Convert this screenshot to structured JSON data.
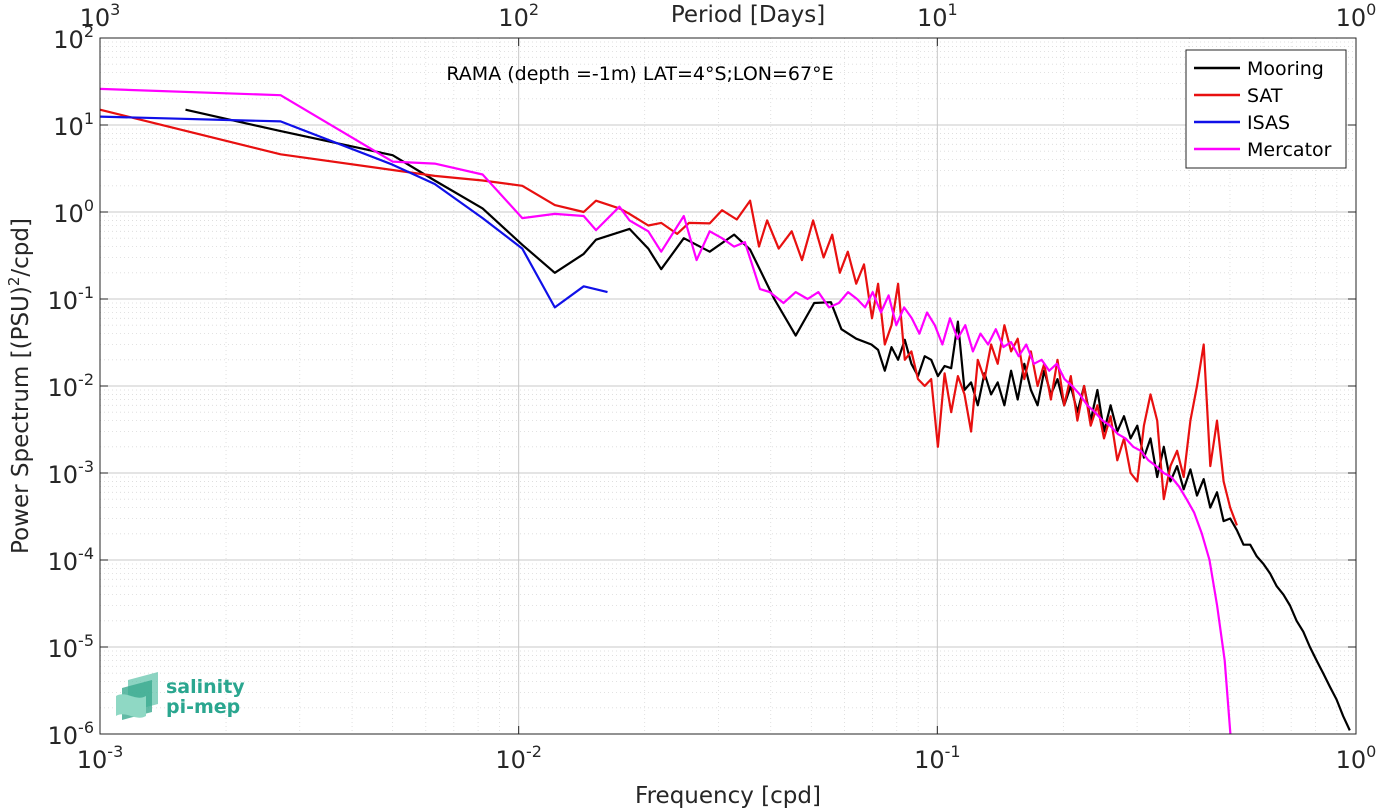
{
  "chart_data": {
    "type": "line",
    "title": "RAMA (depth =-1m) LAT=4°S;LON=67°E",
    "xlabel": "Frequency [cpd]",
    "ylabel": "Power Spectrum [(PSU)",
    "ylabel_sup": "2",
    "ylabel_tail": "/cpd]",
    "top_xlabel": "Period [Days]",
    "x_scale": "log",
    "y_scale": "log",
    "xlim": [
      0.001,
      1
    ],
    "ylim": [
      1e-06,
      100
    ],
    "grid": true,
    "legend_position": "top-right",
    "x_ticks": [
      {
        "value": 0.001,
        "base": "10",
        "exp": "-3"
      },
      {
        "value": 0.01,
        "base": "10",
        "exp": "-2"
      },
      {
        "value": 0.1,
        "base": "10",
        "exp": "-1"
      },
      {
        "value": 1,
        "base": "10",
        "exp": "0"
      }
    ],
    "top_ticks": [
      {
        "value": 0.001,
        "base": "10",
        "exp": "3"
      },
      {
        "value": 0.01,
        "base": "10",
        "exp": "2"
      },
      {
        "value": 0.1,
        "base": "10",
        "exp": "1"
      },
      {
        "value": 1,
        "base": "10",
        "exp": "0"
      }
    ],
    "y_ticks": [
      {
        "value": 100,
        "base": "10",
        "exp": "2"
      },
      {
        "value": 10,
        "base": "10",
        "exp": "1"
      },
      {
        "value": 1,
        "base": "10",
        "exp": "0"
      },
      {
        "value": 0.1,
        "base": "10",
        "exp": "-1"
      },
      {
        "value": 0.01,
        "base": "10",
        "exp": "-2"
      },
      {
        "value": 0.001,
        "base": "10",
        "exp": "-3"
      },
      {
        "value": 0.0001,
        "base": "10",
        "exp": "-4"
      },
      {
        "value": 1e-05,
        "base": "10",
        "exp": "-5"
      },
      {
        "value": 1e-06,
        "base": "10",
        "exp": "-6"
      }
    ],
    "series": [
      {
        "name": "Mooring",
        "color": "#000000",
        "x": [
          0.0016,
          0.0027,
          0.005,
          0.0063,
          0.0082,
          0.0102,
          0.0122,
          0.0143,
          0.0153,
          0.0184,
          0.0204,
          0.0219,
          0.0248,
          0.0286,
          0.0327,
          0.0357,
          0.0408,
          0.0459,
          0.0508,
          0.0557,
          0.059,
          0.064,
          0.0696,
          0.0722,
          0.0749,
          0.0777,
          0.0806,
          0.0836,
          0.0867,
          0.0899,
          0.0933,
          0.0967,
          0.1003,
          0.1041,
          0.1079,
          0.112,
          0.1161,
          0.1204,
          0.1249,
          0.1296,
          0.1344,
          0.1394,
          0.1446,
          0.15,
          0.1556,
          0.1613,
          0.1673,
          0.1736,
          0.18,
          0.1867,
          0.1937,
          0.2009,
          0.2084,
          0.2161,
          0.2242,
          0.2325,
          0.2412,
          0.2501,
          0.2594,
          0.2691,
          0.2791,
          0.2895,
          0.3003,
          0.3114,
          0.323,
          0.335,
          0.3475,
          0.3604,
          0.3738,
          0.3877,
          0.4022,
          0.4171,
          0.4327,
          0.4488,
          0.4655,
          0.4828,
          0.5007,
          0.5194,
          0.5387,
          0.5587,
          0.5795,
          0.6011,
          0.6234,
          0.6466,
          0.6707,
          0.6956,
          0.7215,
          0.7484,
          0.7762,
          0.8051,
          0.8351,
          0.8662,
          0.8984,
          0.9319,
          0.9666
        ],
        "y": [
          15,
          8.5,
          4.5,
          2.3,
          1.1,
          0.42,
          0.2,
          0.33,
          0.48,
          0.64,
          0.38,
          0.22,
          0.5,
          0.35,
          0.55,
          0.37,
          0.1,
          0.038,
          0.09,
          0.092,
          0.045,
          0.035,
          0.03,
          0.026,
          0.015,
          0.028,
          0.02,
          0.034,
          0.018,
          0.013,
          0.022,
          0.02,
          0.013,
          0.017,
          0.016,
          0.055,
          0.009,
          0.011,
          0.006,
          0.014,
          0.008,
          0.011,
          0.006,
          0.015,
          0.007,
          0.018,
          0.009,
          0.006,
          0.015,
          0.008,
          0.012,
          0.006,
          0.01,
          0.005,
          0.01,
          0.004,
          0.009,
          0.003,
          0.006,
          0.003,
          0.0045,
          0.0025,
          0.0035,
          0.0015,
          0.0025,
          0.0009,
          0.002,
          0.0008,
          0.0012,
          0.00065,
          0.0011,
          0.00055,
          0.00085,
          0.0004,
          0.0006,
          0.00028,
          0.0003,
          0.00022,
          0.00015,
          0.00015,
          0.00011,
          9e-05,
          7e-05,
          5e-05,
          4e-05,
          3e-05,
          2e-05,
          1.5e-05,
          1e-05,
          7e-06,
          5e-06,
          3.5e-06,
          2.5e-06,
          1.6e-06,
          1.1e-06
        ]
      },
      {
        "name": "SAT",
        "color": "#e81010",
        "x": [
          0.001,
          0.0027,
          0.0063,
          0.0082,
          0.0102,
          0.0122,
          0.0143,
          0.0153,
          0.0174,
          0.0184,
          0.0204,
          0.0219,
          0.0239,
          0.0255,
          0.0286,
          0.0306,
          0.0332,
          0.0357,
          0.0375,
          0.0392,
          0.0418,
          0.0449,
          0.0475,
          0.0505,
          0.0535,
          0.0561,
          0.0585,
          0.0611,
          0.064,
          0.0668,
          0.0698,
          0.0722,
          0.0749,
          0.0777,
          0.0806,
          0.0836,
          0.0867,
          0.0899,
          0.0933,
          0.0967,
          0.1003,
          0.1041,
          0.1079,
          0.112,
          0.1161,
          0.1204,
          0.1249,
          0.1296,
          0.1344,
          0.1394,
          0.1446,
          0.15,
          0.1556,
          0.1613,
          0.1673,
          0.1736,
          0.18,
          0.1867,
          0.1937,
          0.2009,
          0.2084,
          0.2161,
          0.2242,
          0.2325,
          0.2412,
          0.2501,
          0.2594,
          0.2691,
          0.2791,
          0.2895,
          0.3003,
          0.3114,
          0.323,
          0.335,
          0.3475,
          0.3604,
          0.3738,
          0.3877,
          0.4022,
          0.4171,
          0.4327,
          0.4488,
          0.4655,
          0.4828,
          0.5007,
          0.5194
        ],
        "y": [
          15,
          4.6,
          2.6,
          2.3,
          2.0,
          1.2,
          1.0,
          1.35,
          1.1,
          0.95,
          0.7,
          0.75,
          0.56,
          0.75,
          0.74,
          1.05,
          0.82,
          1.35,
          0.4,
          0.8,
          0.38,
          0.6,
          0.28,
          0.8,
          0.3,
          0.55,
          0.2,
          0.35,
          0.15,
          0.25,
          0.06,
          0.15,
          0.03,
          0.05,
          0.15,
          0.02,
          0.025,
          0.012,
          0.01,
          0.012,
          0.002,
          0.014,
          0.005,
          0.013,
          0.008,
          0.003,
          0.02,
          0.012,
          0.03,
          0.018,
          0.05,
          0.025,
          0.035,
          0.012,
          0.025,
          0.01,
          0.018,
          0.007,
          0.02,
          0.006,
          0.013,
          0.004,
          0.01,
          0.0035,
          0.006,
          0.0025,
          0.0045,
          0.0014,
          0.0025,
          0.001,
          0.0008,
          0.0035,
          0.008,
          0.004,
          0.0005,
          0.0012,
          0.0018,
          0.0009,
          0.004,
          0.01,
          0.03,
          0.0012,
          0.004,
          0.0008,
          0.0004,
          0.00025
        ]
      },
      {
        "name": "ISAS",
        "color": "#1010e8",
        "x": [
          0.001,
          0.0027,
          0.005,
          0.0063,
          0.0082,
          0.0102,
          0.0122,
          0.0143,
          0.0163
        ],
        "y": [
          12.5,
          11,
          3.5,
          2.1,
          0.85,
          0.38,
          0.08,
          0.14,
          0.12
        ]
      },
      {
        "name": "Mercator",
        "color": "#ff00ff",
        "x": [
          0.001,
          0.0027,
          0.005,
          0.0063,
          0.0082,
          0.0102,
          0.0122,
          0.0143,
          0.0153,
          0.0174,
          0.0184,
          0.0204,
          0.0219,
          0.0248,
          0.0266,
          0.0286,
          0.0306,
          0.0327,
          0.0347,
          0.0377,
          0.0398,
          0.0429,
          0.0459,
          0.049,
          0.052,
          0.0551,
          0.0582,
          0.0612,
          0.0643,
          0.0672,
          0.0701,
          0.0733,
          0.0765,
          0.0798,
          0.0833,
          0.0869,
          0.0906,
          0.0945,
          0.0986,
          0.1028,
          0.1072,
          0.1118,
          0.1166,
          0.1216,
          0.1268,
          0.1322,
          0.1379,
          0.1438,
          0.15,
          0.1564,
          0.1631,
          0.1701,
          0.1774,
          0.185,
          0.1929,
          0.2012,
          0.2098,
          0.2188,
          0.2282,
          0.238,
          0.2482,
          0.2588,
          0.2699,
          0.2815,
          0.2936,
          0.3062,
          0.3193,
          0.333,
          0.3473,
          0.3622,
          0.3777,
          0.3939,
          0.4108,
          0.4284,
          0.4467,
          0.4658,
          0.4857,
          0.5012
        ],
        "y": [
          26,
          22,
          3.8,
          3.6,
          2.7,
          0.85,
          0.95,
          0.9,
          0.62,
          1.15,
          0.8,
          0.6,
          0.35,
          0.9,
          0.28,
          0.6,
          0.5,
          0.4,
          0.45,
          0.13,
          0.12,
          0.09,
          0.12,
          0.1,
          0.12,
          0.08,
          0.09,
          0.12,
          0.1,
          0.08,
          0.12,
          0.07,
          0.11,
          0.05,
          0.08,
          0.06,
          0.04,
          0.07,
          0.05,
          0.03,
          0.06,
          0.035,
          0.05,
          0.025,
          0.04,
          0.03,
          0.045,
          0.028,
          0.032,
          0.022,
          0.03,
          0.018,
          0.02,
          0.015,
          0.018,
          0.012,
          0.01,
          0.008,
          0.006,
          0.005,
          0.004,
          0.0035,
          0.0028,
          0.0025,
          0.002,
          0.0018,
          0.0014,
          0.0012,
          0.001,
          0.0009,
          0.0007,
          0.0005,
          0.00035,
          0.0002,
          0.0001,
          3e-05,
          7e-06,
          1e-06
        ]
      }
    ]
  },
  "logo": {
    "line1": "salinity",
    "line2": "pi-mep"
  }
}
